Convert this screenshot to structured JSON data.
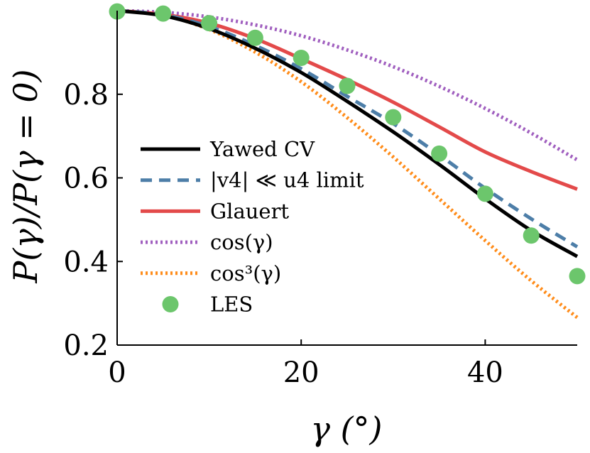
{
  "chart_data": {
    "type": "line",
    "title": "",
    "xlabel": "γ (°)",
    "ylabel": "P(γ)/P(γ = 0)",
    "xlim": [
      0,
      50
    ],
    "ylim": [
      0.2,
      1.0
    ],
    "xticks": [
      "0",
      "20",
      "40"
    ],
    "xtick_values": [
      0,
      20,
      40
    ],
    "yticks": [
      "0.2",
      "0.4",
      "0.6",
      "0.8"
    ],
    "ytick_values": [
      0.2,
      0.4,
      0.6,
      0.8
    ],
    "grid": false,
    "legend_position": "center-left",
    "x": [
      0,
      5,
      10,
      15,
      20,
      25,
      30,
      35,
      40,
      45,
      50
    ],
    "series": [
      {
        "name": "Yawed CV",
        "style": "solid",
        "color": "#000000",
        "values": [
          1.0,
          0.988,
          0.957,
          0.91,
          0.852,
          0.783,
          0.71,
          0.632,
          0.55,
          0.474,
          0.412
        ]
      },
      {
        "name": "|v4| ≪ u4 limit",
        "style": "dashed",
        "color": "#4d7ea8",
        "values": [
          1.0,
          0.99,
          0.962,
          0.917,
          0.861,
          0.795,
          0.73,
          0.655,
          0.575,
          0.502,
          0.435
        ]
      },
      {
        "name": "Glauert",
        "style": "solid",
        "color": "#e34a4a",
        "values": [
          1.0,
          0.991,
          0.97,
          0.933,
          0.885,
          0.835,
          0.781,
          0.722,
          0.662,
          0.615,
          0.573
        ]
      },
      {
        "name": "cos(γ)",
        "style": "dotted",
        "color": "#a05fbf",
        "values": [
          1.0,
          0.996,
          0.985,
          0.966,
          0.94,
          0.906,
          0.866,
          0.819,
          0.766,
          0.707,
          0.643
        ]
      },
      {
        "name": "cos³(γ)",
        "style": "dotted",
        "color": "#ff8c1a",
        "values": [
          1.0,
          0.989,
          0.955,
          0.901,
          0.83,
          0.744,
          0.65,
          0.55,
          0.45,
          0.354,
          0.266
        ]
      },
      {
        "name": "LES",
        "style": "markers",
        "color": "#6cc66c",
        "values": [
          0.998,
          0.993,
          0.97,
          0.935,
          0.887,
          0.82,
          0.745,
          0.658,
          0.562,
          0.462,
          0.365
        ]
      }
    ]
  }
}
